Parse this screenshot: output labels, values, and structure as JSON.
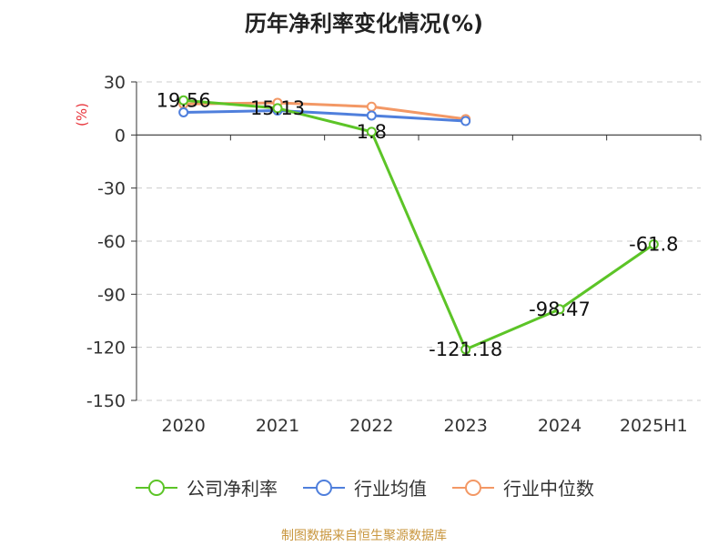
{
  "chart_data": {
    "type": "line",
    "title": "历年净利率变化情况(%)",
    "ylabel": "(%)",
    "xlabel": "",
    "categories": [
      "2020",
      "2021",
      "2022",
      "2023",
      "2024",
      "2025H1"
    ],
    "ylim": [
      -150,
      30
    ],
    "yticks": [
      30,
      0,
      -30,
      -60,
      -90,
      -120,
      -150
    ],
    "grid": true,
    "legend_position": "bottom",
    "series": [
      {
        "name": "公司净利率",
        "color": "#5cc427",
        "values": [
          19.56,
          15.13,
          1.8,
          -121.18,
          -98.47,
          -61.8
        ],
        "labels": [
          "19.56",
          "15.13",
          "1.8",
          "-121.18",
          "-98.47",
          "-61.8"
        ]
      },
      {
        "name": "行业均值",
        "color": "#4f7fdc",
        "values": [
          12.8,
          13.8,
          11.0,
          7.9,
          null,
          null
        ]
      },
      {
        "name": "行业中位数",
        "color": "#f39865",
        "values": [
          17.5,
          18.2,
          16.0,
          9.0,
          null,
          null
        ]
      }
    ]
  },
  "footer": {
    "source": "制图数据来自恒生聚源数据库"
  }
}
